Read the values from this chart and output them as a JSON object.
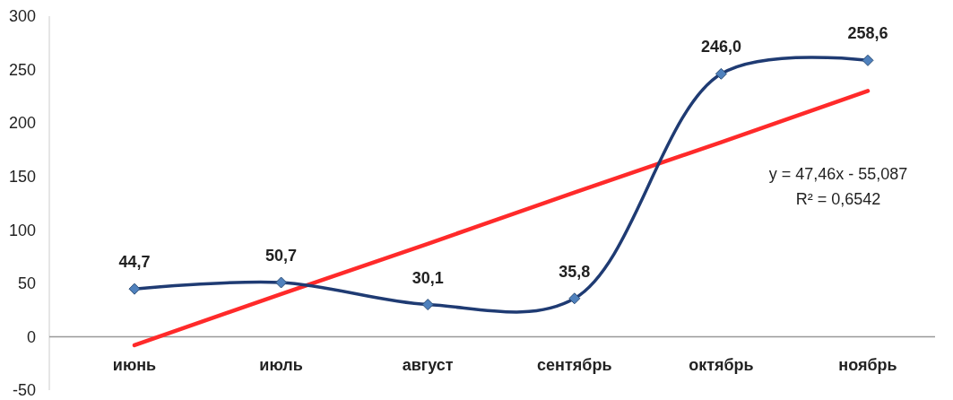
{
  "chart_data": {
    "type": "line",
    "categories": [
      "июнь",
      "июль",
      "август",
      "сентябрь",
      "октябрь",
      "ноябрь"
    ],
    "series": [
      {
        "color": "#1f3b73",
        "values": [
          44.7,
          50.7,
          30.1,
          35.8,
          246.0,
          258.6
        ],
        "value_labels": [
          "44,7",
          "50,7",
          "30,1",
          "35,8",
          "246,0",
          "258,6"
        ],
        "marker": "diamond"
      },
      {
        "type": "line",
        "color": "#ff2a2a",
        "values": [
          -8,
          40,
          87,
          135,
          182,
          230
        ],
        "marker": "none"
      }
    ],
    "ylim": [
      -50,
      300
    ],
    "yticks": [
      -50,
      0,
      50,
      100,
      150,
      200,
      250,
      300
    ],
    "grid": false,
    "annotations": [
      "y = 47,46x - 55,087",
      "R² = 0,6542"
    ]
  }
}
